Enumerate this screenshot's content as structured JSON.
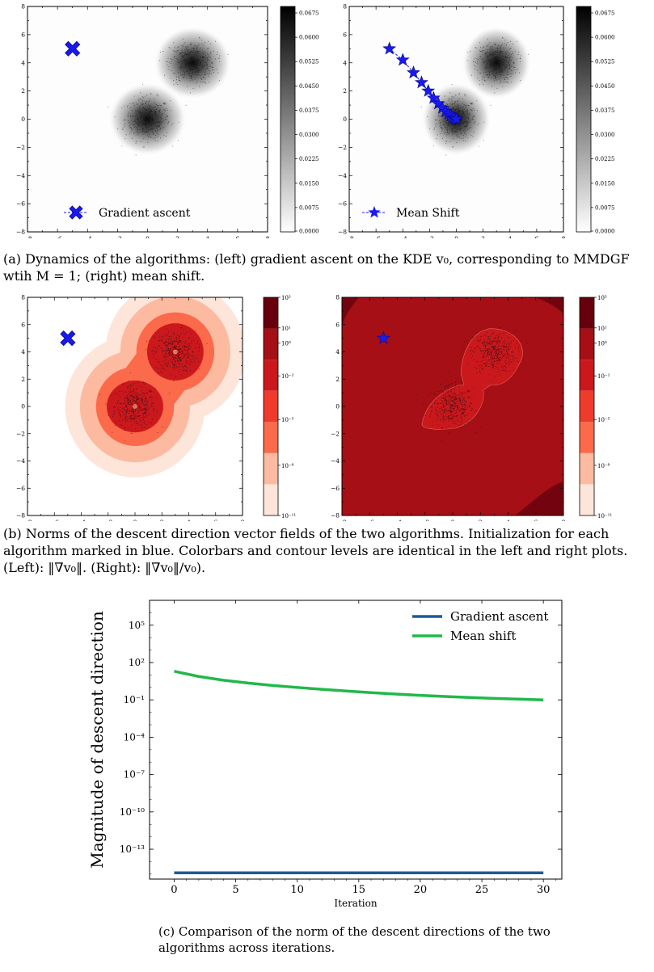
{
  "captions": {
    "a": "(a) Dynamics of the algorithms: (left) gradient ascent on the KDE v₀, corresponding to MMDGF wtih M = 1; (right) mean shift.",
    "b": "(b) Norms of the descent direction vector fields of the two algorithms. Initialization for each algorithm marked in blue. Colorbars and contour levels are identical in the left and right plots. (Left): ‖∇v₀‖. (Right): ‖∇v₀‖/v₀).",
    "c": "(c) Comparison of the norm of the descent directions of the two algorithms across iterations."
  },
  "panel_a_ticks": [
    "−8",
    "−6",
    "−4",
    "−2",
    "0",
    "2",
    "4",
    "6",
    "8"
  ],
  "panel_a_colorbar": [
    "0.0675",
    "0.0600",
    "0.0525",
    "0.0450",
    "0.0375",
    "0.0300",
    "0.0225",
    "0.0150",
    "0.0075",
    "0.0000"
  ],
  "panel_b_colorbar": [
    "10³",
    "10¹",
    "10⁰",
    "10⁻²",
    "10⁻⁵",
    "10⁻⁸",
    "10⁻¹¹"
  ],
  "panel_b_colors": [
    "#fee5d9",
    "#fcbba1",
    "#fb6a4a",
    "#ef3b2c",
    "#cb181d",
    "#a50f15",
    "#67000d"
  ],
  "legend_a_left": "Gradient ascent",
  "legend_a_right": "Mean Shift",
  "mean_shift_path": [
    [
      -5,
      5
    ],
    [
      -4,
      4.2
    ],
    [
      -3.2,
      3.3
    ],
    [
      -2.6,
      2.6
    ],
    [
      -2.1,
      2.0
    ],
    [
      -1.7,
      1.5
    ],
    [
      -1.35,
      1.1
    ],
    [
      -1.05,
      0.8
    ],
    [
      -0.8,
      0.55
    ],
    [
      -0.6,
      0.38
    ],
    [
      -0.42,
      0.24
    ],
    [
      -0.28,
      0.14
    ],
    [
      -0.16,
      0.07
    ],
    [
      -0.07,
      0.03
    ],
    [
      0,
      0
    ]
  ],
  "init_point": [
    -5,
    5
  ],
  "chart_data": {
    "type": "line",
    "xlabel": "Iteration",
    "ylabel": "Magnitude of descent direction",
    "xlim": [
      -2,
      31.5
    ],
    "ylim_log10": [
      -15.4,
      7
    ],
    "x_ticks": [
      "0",
      "5",
      "10",
      "15",
      "20",
      "25",
      "30"
    ],
    "y_ticks": [
      "10⁵",
      "10²",
      "10⁻¹",
      "10⁻⁴",
      "10⁻⁷",
      "10⁻¹⁰",
      "10⁻¹³"
    ],
    "legend_position": "top-right",
    "series": [
      {
        "name": "Gradient ascent",
        "color": "#1a5a9c",
        "x": [
          0,
          30
        ],
        "log10_y": [
          -14.9,
          -14.9
        ]
      },
      {
        "name": "Mean shift",
        "color": "#22b84a",
        "x": [
          0,
          2,
          4,
          6,
          8,
          10,
          12,
          14,
          16,
          18,
          20,
          22,
          24,
          26,
          28,
          30
        ],
        "log10_y": [
          1.3,
          0.88,
          0.58,
          0.35,
          0.16,
          0.0,
          -0.15,
          -0.29,
          -0.42,
          -0.53,
          -0.64,
          -0.73,
          -0.81,
          -0.88,
          -0.94,
          -1.0
        ]
      }
    ]
  }
}
